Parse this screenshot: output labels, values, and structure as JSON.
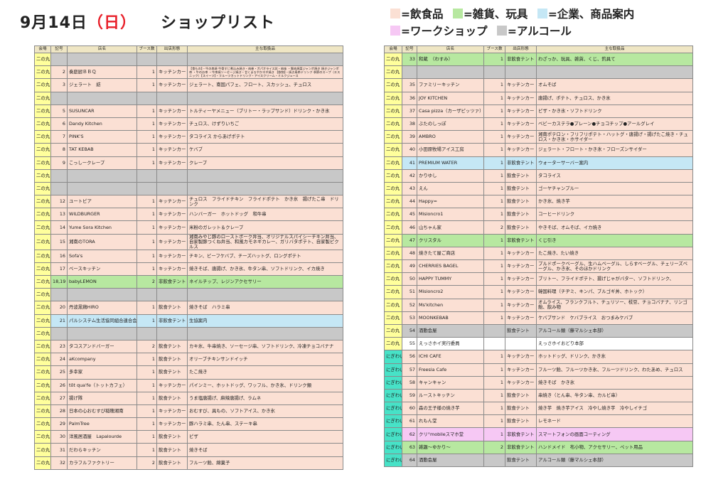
{
  "title": {
    "date": "9月14日",
    "day": "（日）",
    "text": "ショップリスト"
  },
  "legend": [
    {
      "label": "=飲食品",
      "color": "#fbe0d4"
    },
    {
      "label": "=雑貨、玩具",
      "color": "#b7e8a0"
    },
    {
      "label": "=企業、商品案内",
      "color": "#c5e7f5"
    },
    {
      "label": "=ワークショップ",
      "color": "#f6c8f4"
    },
    {
      "label": "=アルコール",
      "color": "#c8c8c8"
    }
  ],
  "headers": [
    "会場",
    "記号",
    "店名",
    "ブース数",
    "出店形態",
    "主な取扱品"
  ],
  "left_rows": [
    {
      "area": "二の丸",
      "no": "",
      "name": "",
      "booths": "",
      "type": "",
      "items": "",
      "cat": "alc"
    },
    {
      "area": "二の丸",
      "no": "2",
      "name": "奏庭厨ＢＢＱ",
      "booths": "1",
      "type": "キッチンカー",
      "items": "【食もの】・牛の串焼 牛骨すじ煮込み焼き・肉巻・ガパオライス丼・肉味 ・豚肉焼菜ジャンボ焼き 焼きジャンボ串 ・牛のお串 ・牛串焼ソーセージ焼き・甘くまろやかネギ焼き 【飲物】・焼き鳥串ドリンク 季節のスープ（エスニック）【スイーツ】・フルーツカットドリンク・アイスクリーム・ミルクジュース",
      "cat": "food",
      "small": true
    },
    {
      "area": "二の丸",
      "no": "3",
      "name": "ジェラート　紡",
      "booths": "1",
      "type": "キッチンカー",
      "items": "ジェラート、南国パフェ、フロート、スカッシュ、チュロス",
      "cat": "food"
    },
    {
      "area": "二の丸",
      "no": "",
      "name": "",
      "booths": "",
      "type": "",
      "items": "",
      "cat": "alc"
    },
    {
      "area": "二の丸",
      "no": "5",
      "name": "SUSUNCAR",
      "booths": "1",
      "type": "キッチンカー",
      "items": "トルティーヤメニュー（ブリトー・ラップサンド）ドリンク・かき氷",
      "cat": "food"
    },
    {
      "area": "二の丸",
      "no": "6",
      "name": "Dandy Kitchen",
      "booths": "1",
      "type": "キッチンカー",
      "items": "チュロス、けずりいちご",
      "cat": "food"
    },
    {
      "area": "二の丸",
      "no": "7",
      "name": "PINK'S",
      "booths": "1",
      "type": "キッチンカー",
      "items": "タコライス からあげポテト",
      "cat": "food"
    },
    {
      "area": "二の丸",
      "no": "8",
      "name": "TAT KEBAB",
      "booths": "1",
      "type": "キッチンカー",
      "items": "ケバブ",
      "cat": "food"
    },
    {
      "area": "二の丸",
      "no": "9",
      "name": "こっしークレープ",
      "booths": "1",
      "type": "キッチンカー",
      "items": "クレープ",
      "cat": "food"
    },
    {
      "area": "二の丸",
      "no": "",
      "name": "",
      "booths": "",
      "type": "",
      "items": "",
      "cat": "alc"
    },
    {
      "area": "二の丸",
      "no": "",
      "name": "",
      "booths": "",
      "type": "",
      "items": "",
      "cat": "alc"
    },
    {
      "area": "二の丸",
      "no": "12",
      "name": "ユートピア",
      "booths": "1",
      "type": "キッチンカー",
      "items": "チュロス　フライドチキン　フライドポテト　かき氷　揚げたこ串　ドリンク",
      "cat": "food"
    },
    {
      "area": "二の丸",
      "no": "13",
      "name": "WILDBURGER",
      "booths": "1",
      "type": "キッチンカー",
      "items": "ハンバーガー　ホットドッグ　和牛串",
      "cat": "food"
    },
    {
      "area": "二の丸",
      "no": "14",
      "name": "Yume Sora Kitchen",
      "booths": "1",
      "type": "キッチンカー",
      "items": "米粉のガレット＆クレープ",
      "cat": "food"
    },
    {
      "area": "二の丸",
      "no": "15",
      "name": "湘南のTORA",
      "booths": "1",
      "type": "キッチンカー",
      "items": "湘南みやじ豚のローストポーク弁当、オリジナルスパイシーチキン弁当、自家製豚つくね弁当、和風カモネギカレー、ガリバタポテト、自家製ピクルス",
      "cat": "food"
    },
    {
      "area": "二の丸",
      "no": "16",
      "name": "Sofa's",
      "booths": "1",
      "type": "キッチンカー",
      "items": "チキン、ビーフケバブ、チーズハットグ、ロングポテト",
      "cat": "food"
    },
    {
      "area": "二の丸",
      "no": "17",
      "name": "ベースキッチン",
      "booths": "1",
      "type": "キッチンカー",
      "items": "焼きそば、唐揚げ、かき氷、牛タン串、ソフトドリンク、イカ焼き",
      "cat": "food"
    },
    {
      "area": "二の丸",
      "no": "18,19",
      "name": "babyLEMON",
      "booths": "2",
      "type": "非飲食テント",
      "items": "ネイルチップ、レジンアクセサリー",
      "cat": "goods"
    },
    {
      "area": "二の丸",
      "no": "",
      "name": "",
      "booths": "",
      "type": "",
      "items": "",
      "cat": "alc"
    },
    {
      "area": "二の丸",
      "no": "20",
      "name": "丹波黒鶏HIRO",
      "booths": "1",
      "type": "飲食テント",
      "items": "焼きそば　ハラミ串",
      "cat": "food"
    },
    {
      "area": "二の丸",
      "no": "21",
      "name": "パルシステム生活協同組合連合会",
      "booths": "1",
      "type": "非飲食テント",
      "items": "生協案内",
      "cat": "corp"
    },
    {
      "area": "二の丸",
      "no": "",
      "name": "",
      "booths": "",
      "type": "",
      "items": "",
      "cat": "alc"
    },
    {
      "area": "二の丸",
      "no": "23",
      "name": "タコスアンドバーガー",
      "booths": "2",
      "type": "飲食テント",
      "items": "カキ氷、牛串焼き、ソーセージ串、ソフトドリンク、冷凍チョコバナナ",
      "cat": "food"
    },
    {
      "area": "二の丸",
      "no": "24",
      "name": "aKcompany",
      "booths": "1",
      "type": "飲食テント",
      "items": "オリーブチキンサンドイッチ",
      "cat": "food"
    },
    {
      "area": "二の丸",
      "no": "25",
      "name": "多幸家",
      "booths": "1",
      "type": "飲食テント",
      "items": "たこ焼き",
      "cat": "food"
    },
    {
      "area": "二の丸",
      "no": "26",
      "name": "tôt qua'fe（トットカフェ）",
      "booths": "1",
      "type": "キッチンカー",
      "items": "パインミー、ホットドッグ、ワッフル、かき氷、ドリンク類",
      "cat": "food"
    },
    {
      "area": "二の丸",
      "no": "27",
      "name": "揚げ隊",
      "booths": "1",
      "type": "飲食テント",
      "items": "うま塩唐揚げ、麻辣唐揚げ、ラムネ",
      "cat": "food"
    },
    {
      "area": "二の丸",
      "no": "28",
      "name": "日本の心おむすび稲穂湘南",
      "booths": "1",
      "type": "キッチンカー",
      "items": "おむすび、具もの、ソフトアイス、かき氷",
      "cat": "food"
    },
    {
      "area": "二の丸",
      "no": "29",
      "name": "PalmTree",
      "booths": "1",
      "type": "キッチンカー",
      "items": "豚ハラミ串、たん串、ステーキ串",
      "cat": "food"
    },
    {
      "area": "二の丸",
      "no": "30",
      "name": "洋風居酒屋　Lapalourde",
      "booths": "1",
      "type": "飲食テント",
      "items": "ピザ",
      "cat": "food"
    },
    {
      "area": "二の丸",
      "no": "31",
      "name": "だわらキッチン",
      "booths": "1",
      "type": "飲食テント",
      "items": "焼きそば",
      "cat": "food"
    },
    {
      "area": "二の丸",
      "no": "32",
      "name": "カラフルファクトリー",
      "booths": "2",
      "type": "飲食テント",
      "items": "フルーツ飴、綿菓子",
      "cat": "food"
    }
  ],
  "right_rows": [
    {
      "area": "二の丸",
      "no": "33",
      "name": "和蔵　（わすみ）",
      "booths": "1",
      "type": "非飲食テント",
      "items": "わざっか、玩具、雑貨、くじ、釣具て",
      "cat": "goods"
    },
    {
      "area": "二の丸",
      "no": "",
      "name": "",
      "booths": "",
      "type": "",
      "items": "",
      "cat": "alc"
    },
    {
      "area": "二の丸",
      "no": "35",
      "name": "ファミリーキッチン",
      "booths": "1",
      "type": "キッチンカー",
      "items": "オムそば",
      "cat": "food"
    },
    {
      "area": "二の丸",
      "no": "36",
      "name": "JOY KITCHEN",
      "booths": "1",
      "type": "キッチンカー",
      "items": "唐揚げ、ポテト、チュロス、かき氷",
      "cat": "food"
    },
    {
      "area": "二の丸",
      "no": "37",
      "name": "Casa pizza（カーザピッツァ）",
      "booths": "1",
      "type": "キッチンカー",
      "items": "ピザ・かき氷・ソフトドリンク",
      "cat": "food"
    },
    {
      "area": "二の丸",
      "no": "38",
      "name": "ぶたのしっぽ",
      "booths": "1",
      "type": "キッチンカー",
      "items": "ベビーカステラ●プレーン●チョコチップ●アールグレイ",
      "cat": "food"
    },
    {
      "area": "二の丸",
      "no": "39",
      "name": "AMBRO",
      "booths": "1",
      "type": "キッチンカー",
      "items": "湘南ポテロン・フリフリポテト・ハットグ・唐揚げ・揚げたこ焼き・チュロス・かき氷・ホサイダー",
      "cat": "food"
    },
    {
      "area": "二の丸",
      "no": "40",
      "name": "小田原牧場アイス工房",
      "booths": "1",
      "type": "キッチンカー",
      "items": "ジェラート・フロート・かき氷・フローズンサイダー",
      "cat": "food"
    },
    {
      "area": "二の丸",
      "no": "41",
      "name": "PREMIUM WATER",
      "booths": "1",
      "type": "非飲食テント",
      "items": "ウォーターサーバー案内",
      "cat": "corp"
    },
    {
      "area": "二の丸",
      "no": "42",
      "name": "かりゆし",
      "booths": "1",
      "type": "飲食テント",
      "items": "タコライス",
      "cat": "food"
    },
    {
      "area": "二の丸",
      "no": "43",
      "name": "えん",
      "booths": "1",
      "type": "飲食テント",
      "items": "ゴーヤチャンプルー",
      "cat": "food"
    },
    {
      "area": "二の丸",
      "no": "44",
      "name": "Happy=",
      "booths": "1",
      "type": "飲食テント",
      "items": "かき氷、焼き芋",
      "cat": "food"
    },
    {
      "area": "二の丸",
      "no": "45",
      "name": "Misioncro1",
      "booths": "1",
      "type": "飲食テント",
      "items": "コーヒードリンク",
      "cat": "food"
    },
    {
      "area": "二の丸",
      "no": "46",
      "name": "山ちゃん家",
      "booths": "2",
      "type": "飲食テント",
      "items": "やきそば、オムそば、イカ焼き",
      "cat": "food"
    },
    {
      "area": "二の丸",
      "no": "47",
      "name": "クリスタル",
      "booths": "1",
      "type": "非飲食テント",
      "items": "くじ引き",
      "cat": "goods"
    },
    {
      "area": "二の丸",
      "no": "48",
      "name": "焼きたて屋ご商店",
      "booths": "1",
      "type": "キッチンカー",
      "items": "たこ焼き、たい焼き",
      "cat": "food"
    },
    {
      "area": "二の丸",
      "no": "49",
      "name": "CHERRIES BAGEL",
      "booths": "1",
      "type": "キッチンカー",
      "items": "プルドポークベーグル、生ハムベーグル、しらすベーグル、チェリーズベーグル、かき氷、そのほかドリンク",
      "cat": "food"
    },
    {
      "area": "二の丸",
      "no": "50",
      "name": "HAPPY TUMMY",
      "booths": "1",
      "type": "キッチンカー",
      "items": "ブリトー、フライドポテト、揚げじゃがバター、ソフトドリンク、",
      "cat": "food"
    },
    {
      "area": "二の丸",
      "no": "51",
      "name": "Misioncro2",
      "booths": "1",
      "type": "キッチンカー",
      "items": "韓国料理（チヂミ、キンパ、ブルゴギ丼、ホトック）",
      "cat": "food"
    },
    {
      "area": "二の丸",
      "no": "52",
      "name": "Ms'kitchen",
      "booths": "1",
      "type": "キッチンカー",
      "items": "オムライス、フランクフルト、チュリソー、枝豆、チョコバナナ、リンゴ飴、飲み物",
      "cat": "food"
    },
    {
      "area": "二の丸",
      "no": "53",
      "name": "MOONKEBAB",
      "booths": "1",
      "type": "キッチンカー",
      "items": "ケバブサンド　ケバブライス　おつまみケバブ",
      "cat": "food"
    },
    {
      "area": "二の丸",
      "no": "54",
      "name": "酒動会屋",
      "booths": "",
      "type": "飲食テント",
      "items": "アルコール類（藤マルシェ本部）",
      "cat": "alc"
    },
    {
      "area": "二の丸",
      "no": "55",
      "name": "えっさホイ実行委員",
      "booths": "",
      "type": "",
      "items": "えっさホイおどり本部",
      "cat": "none"
    },
    {
      "area": "にぎわい",
      "no": "56",
      "name": "ICHI CAFE",
      "booths": "1",
      "type": "キッチンカー",
      "items": "ホットドッグ、ドリンク、かき氷",
      "cat": "food"
    },
    {
      "area": "にぎわい",
      "no": "57",
      "name": "Freesia Cafe",
      "booths": "1",
      "type": "キッチンカー",
      "items": "フルーツ飴、フルーツかき氷、フルーツドリンク、わたあめ、チュロス",
      "cat": "food"
    },
    {
      "area": "にぎわい",
      "no": "58",
      "name": "キャンキャン",
      "booths": "1",
      "type": "キッチンカー",
      "items": "焼きそば　かき氷",
      "cat": "food"
    },
    {
      "area": "にぎわい",
      "no": "59",
      "name": "ルーストキッチン",
      "booths": "1",
      "type": "飲食テント",
      "items": "串焼き（とん串、牛タン串、カルビ串）",
      "cat": "food"
    },
    {
      "area": "にぎわい",
      "no": "60",
      "name": "森の王子様の焼き芋",
      "booths": "1",
      "type": "飲食テント",
      "items": "焼き芋　焼き芋アイス　冷やし焼き芋　冷やしイチゴ",
      "cat": "food"
    },
    {
      "area": "にぎわい",
      "no": "61",
      "name": "れもん堂",
      "booths": "1",
      "type": "飲食テント",
      "items": "レモネード",
      "cat": "food"
    },
    {
      "area": "にぎわい",
      "no": "62",
      "name": "クリ°mobileスマホ堂",
      "booths": "1",
      "type": "非飲食テント",
      "items": "スマートフォンの画面コーティング",
      "cat": "ws"
    },
    {
      "area": "にぎわい",
      "no": "63",
      "name": "雑趣～ゆかり～",
      "booths": "2",
      "type": "非飲食テント",
      "items": "ハンドメイド　布小物、アクセサリー、ペット用品",
      "cat": "goods"
    },
    {
      "area": "にぎわい",
      "no": "64",
      "name": "酒動会屋",
      "booths": "",
      "type": "飲食テント",
      "items": "アルコール類（藤マルシェ本部）",
      "cat": "alc"
    }
  ]
}
